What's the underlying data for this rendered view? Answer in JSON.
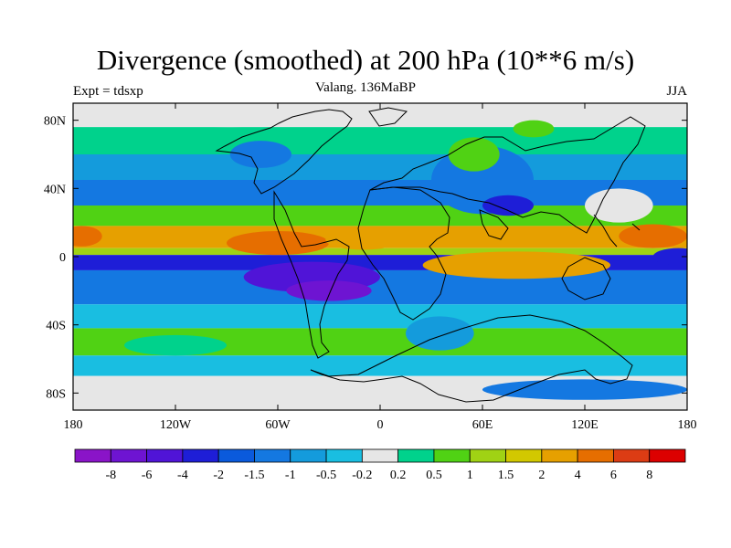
{
  "title": "Divergence (smoothed) at 200 hPa (10**6 m/s)",
  "left_label": "Expt = tdsxp",
  "center_label": "Valang. 136MaBP",
  "right_label": "JJA",
  "map": {
    "lon_range": [
      -180,
      180
    ],
    "lat_range": [
      -90,
      90
    ],
    "x_ticks": [
      {
        "lon": -180,
        "label": "180"
      },
      {
        "lon": -120,
        "label": "120W"
      },
      {
        "lon": -60,
        "label": "60W"
      },
      {
        "lon": 0,
        "label": "0"
      },
      {
        "lon": 60,
        "label": "60E"
      },
      {
        "lon": 120,
        "label": "120E"
      },
      {
        "lon": 180,
        "label": "180"
      }
    ],
    "y_ticks": [
      {
        "lat": 80,
        "label": "80N"
      },
      {
        "lat": 40,
        "label": "40N"
      },
      {
        "lat": 0,
        "label": "0"
      },
      {
        "lat": -40,
        "label": "40S"
      },
      {
        "lat": -80,
        "label": "80S"
      }
    ]
  },
  "colorbar": {
    "colors": [
      "#8a14c8",
      "#6e14d2",
      "#5014d7",
      "#1e1ed7",
      "#0a5adc",
      "#1478e1",
      "#149bdc",
      "#19bee1",
      "#e6e6e6",
      "#00d28c",
      "#50d214",
      "#a0d214",
      "#d2c800",
      "#e6a000",
      "#e66e00",
      "#dc3c14",
      "#dc0000"
    ],
    "labels": [
      "-8",
      "-6",
      "-4",
      "-2",
      "-1.5",
      "-1",
      "-0.5",
      "-0.2",
      "0.2",
      "0.5",
      "1",
      "1.5",
      "2",
      "4",
      "6",
      "8"
    ]
  },
  "fields": {
    "bands": [
      {
        "lat1": 90,
        "lat2": 76,
        "level": 0.0
      },
      {
        "lat1": 76,
        "lat2": 60,
        "level": 0.4
      },
      {
        "lat1": 60,
        "lat2": 45,
        "level": -0.6
      },
      {
        "lat1": 45,
        "lat2": 30,
        "level": -1.2
      },
      {
        "lat1": 30,
        "lat2": 18,
        "level": 0.6
      },
      {
        "lat1": 18,
        "lat2": 5,
        "level": 3.0
      },
      {
        "lat1": 5,
        "lat2": 1,
        "level": 1.2
      },
      {
        "lat1": 1,
        "lat2": -8,
        "level": -2.5
      },
      {
        "lat1": -8,
        "lat2": -28,
        "level": -1.2
      },
      {
        "lat1": -28,
        "lat2": -42,
        "level": -0.3
      },
      {
        "lat1": -42,
        "lat2": -58,
        "level": 0.6
      },
      {
        "lat1": -58,
        "lat2": -70,
        "level": -0.3
      },
      {
        "lat1": -70,
        "lat2": -90,
        "level": 0.0
      }
    ],
    "blobs": [
      {
        "lon": -60,
        "lat": 8,
        "rlon": 30,
        "rlat": 7,
        "level": 4.5
      },
      {
        "lon": -10,
        "lat": 10,
        "rlon": 22,
        "rlat": 6,
        "level": 3.0
      },
      {
        "lon": 80,
        "lat": -5,
        "rlon": 55,
        "rlat": 8,
        "level": 2.5
      },
      {
        "lon": -175,
        "lat": 12,
        "rlon": 12,
        "rlat": 6,
        "level": 5.0
      },
      {
        "lon": 160,
        "lat": 12,
        "rlon": 20,
        "rlat": 7,
        "level": 4.5
      },
      {
        "lon": -40,
        "lat": -12,
        "rlon": 40,
        "rlat": 9,
        "level": -4.5
      },
      {
        "lon": -30,
        "lat": -20,
        "rlon": 25,
        "rlat": 6,
        "level": -6.5
      },
      {
        "lon": 175,
        "lat": 0,
        "rlon": 15,
        "rlat": 5,
        "level": -2.5
      },
      {
        "lon": 60,
        "lat": 45,
        "rlon": 30,
        "rlat": 20,
        "level": -1.5
      },
      {
        "lon": 75,
        "lat": 30,
        "rlon": 15,
        "rlat": 6,
        "level": -3.0
      },
      {
        "lon": 55,
        "lat": 60,
        "rlon": 15,
        "rlat": 10,
        "level": 0.8
      },
      {
        "lon": 90,
        "lat": 75,
        "rlon": 12,
        "rlat": 5,
        "level": 0.8
      },
      {
        "lon": -70,
        "lat": 60,
        "rlon": 18,
        "rlat": 8,
        "level": -1.5
      },
      {
        "lon": 35,
        "lat": -45,
        "rlon": 20,
        "rlat": 10,
        "level": -0.8
      },
      {
        "lon": -120,
        "lat": -52,
        "rlon": 30,
        "rlat": 6,
        "level": 0.4
      },
      {
        "lon": 120,
        "lat": -78,
        "rlon": 60,
        "rlat": 6,
        "level": -1.2
      },
      {
        "lon": 140,
        "lat": 30,
        "rlon": 20,
        "rlat": 10,
        "level": 0.0
      },
      {
        "lon": -90,
        "lat": 82,
        "rlon": 80,
        "rlat": 6,
        "level": 0.0
      }
    ]
  }
}
